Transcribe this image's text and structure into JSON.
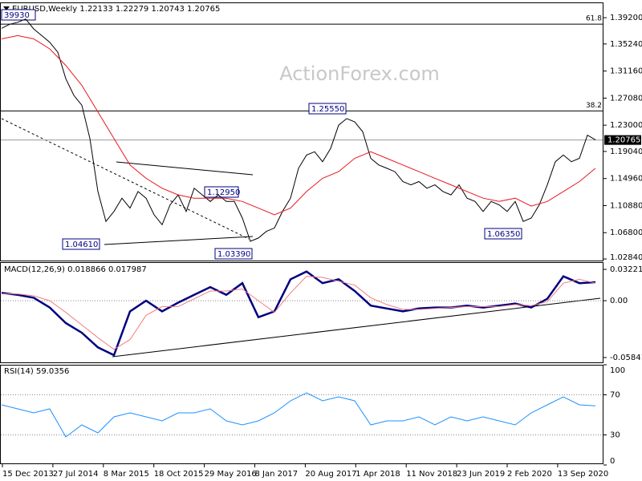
{
  "header": "EURUSD,Weekly  1.22133 1.22279 1.20743 1.20765",
  "watermark": "ActionForex.com",
  "x_axis_labels": [
    "15 Dec 2013",
    "27 Jul 2014",
    "8 Mar 2015",
    "18 Oct 2015",
    "29 May 2016",
    "8 Jan 2017",
    "20 Aug 2017",
    "1 Apr 2018",
    "11 Nov 2018",
    "23 Jun 2019",
    "2 Feb 2020",
    "13 Sep 2020"
  ],
  "chart_data": [
    {
      "type": "line",
      "ylim": [
        1.0248,
        1.4138
      ],
      "yticks": [
        {
          "value": 1.392,
          "label": "1.39200"
        },
        {
          "value": 1.3524,
          "label": "1.35240"
        },
        {
          "value": 1.3116,
          "label": "1.31160"
        },
        {
          "value": 1.2708,
          "label": "1.27080"
        },
        {
          "value": 1.23,
          "label": "1.23000"
        },
        {
          "value": 1.1904,
          "label": "1.19040"
        },
        {
          "value": 1.1496,
          "label": "1.14960"
        },
        {
          "value": 1.1088,
          "label": "1.10880"
        },
        {
          "value": 1.068,
          "label": "1.06800"
        },
        {
          "value": 1.0284,
          "label": "1.02840"
        }
      ],
      "levels": [
        {
          "value": 1.3822,
          "label": "61.8"
        },
        {
          "value": 1.2514,
          "label": "38.2"
        },
        {
          "value": 1.20765,
          "label": "1.20765"
        }
      ],
      "annotations": [
        "39930",
        "1.25550",
        "1.12950",
        "1.04610",
        "1.03390",
        "1.06350"
      ],
      "series": [
        {
          "color": "#000000",
          "values": [
            1.376,
            1.382,
            1.385,
            1.39,
            1.375,
            1.365,
            1.355,
            1.34,
            1.3,
            1.275,
            1.26,
            1.21,
            1.13,
            1.085,
            1.1,
            1.12,
            1.105,
            1.13,
            1.12,
            1.095,
            1.08,
            1.11,
            1.125,
            1.1,
            1.135,
            1.125,
            1.115,
            1.125,
            1.115,
            1.115,
            1.09,
            1.055,
            1.06,
            1.07,
            1.075,
            1.1,
            1.12,
            1.165,
            1.185,
            1.19,
            1.175,
            1.195,
            1.23,
            1.24,
            1.235,
            1.22,
            1.18,
            1.17,
            1.165,
            1.16,
            1.145,
            1.14,
            1.145,
            1.135,
            1.14,
            1.13,
            1.125,
            1.14,
            1.12,
            1.115,
            1.1,
            1.115,
            1.11,
            1.1,
            1.115,
            1.085,
            1.09,
            1.11,
            1.14,
            1.175,
            1.185,
            1.175,
            1.18,
            1.215,
            1.208
          ]
        },
        {
          "color": "#e8171f",
          "values": [
            1.36,
            1.365,
            1.36,
            1.345,
            1.32,
            1.29,
            1.25,
            1.21,
            1.17,
            1.15,
            1.135,
            1.125,
            1.12,
            1.12,
            1.12,
            1.115,
            1.105,
            1.095,
            1.105,
            1.13,
            1.15,
            1.16,
            1.18,
            1.19,
            1.18,
            1.17,
            1.16,
            1.15,
            1.14,
            1.13,
            1.12,
            1.115,
            1.12,
            1.108,
            1.115,
            1.13,
            1.145,
            1.165
          ]
        }
      ]
    },
    {
      "type": "line",
      "title": "MACD(12,26,9) 0.018866 0.017987",
      "ylim": [
        -0.0642,
        0.0388
      ],
      "yticks": [
        0.032215,
        {
          "value": 0,
          "label": "0.00"
        },
        -0.058413
      ],
      "series": [
        {
          "color": "#000080",
          "width": 2.5,
          "values": [
            0.008,
            0.006,
            0.003,
            -0.007,
            -0.023,
            -0.033,
            -0.048,
            -0.056,
            -0.011,
            0,
            -0.011,
            -0.002,
            0.006,
            0.014,
            0.006,
            0.018,
            -0.017,
            -0.011,
            0.022,
            0.03,
            0.018,
            0.022,
            0.01,
            -0.005,
            -0.008,
            -0.011,
            -0.008,
            -0.007,
            -0.007,
            -0.005,
            -0.007,
            -0.005,
            -0.003,
            -0.007,
            0.002,
            0.025,
            0.018,
            0.019
          ]
        },
        {
          "color": "#f08080",
          "width": 1,
          "values": [
            0.007,
            0.007,
            0.005,
            0,
            -0.012,
            -0.025,
            -0.038,
            -0.05,
            -0.04,
            -0.015,
            -0.006,
            -0.006,
            0.002,
            0.01,
            0.01,
            0.012,
            0,
            -0.012,
            0.008,
            0.025,
            0.024,
            0.02,
            0.016,
            0.003,
            -0.004,
            -0.009,
            -0.009,
            -0.008,
            -0.007,
            -0.006,
            -0.006,
            -0.006,
            -0.004,
            -0.005,
            -0.001,
            0.018,
            0.022,
            0.018
          ]
        }
      ]
    },
    {
      "type": "line",
      "title": "RSI(14) 59.0356",
      "ylim": [
        0,
        100
      ],
      "yticks": [
        100,
        70,
        30,
        0
      ],
      "series": [
        {
          "color": "#1e90ff",
          "width": 1,
          "values": [
            60,
            56,
            52,
            56,
            28,
            40,
            32,
            48,
            52,
            48,
            44,
            52,
            52,
            56,
            44,
            40,
            44,
            52,
            64,
            72,
            64,
            68,
            64,
            40,
            44,
            44,
            48,
            40,
            48,
            44,
            48,
            44,
            40,
            52,
            60,
            68,
            60,
            59
          ]
        }
      ]
    }
  ]
}
